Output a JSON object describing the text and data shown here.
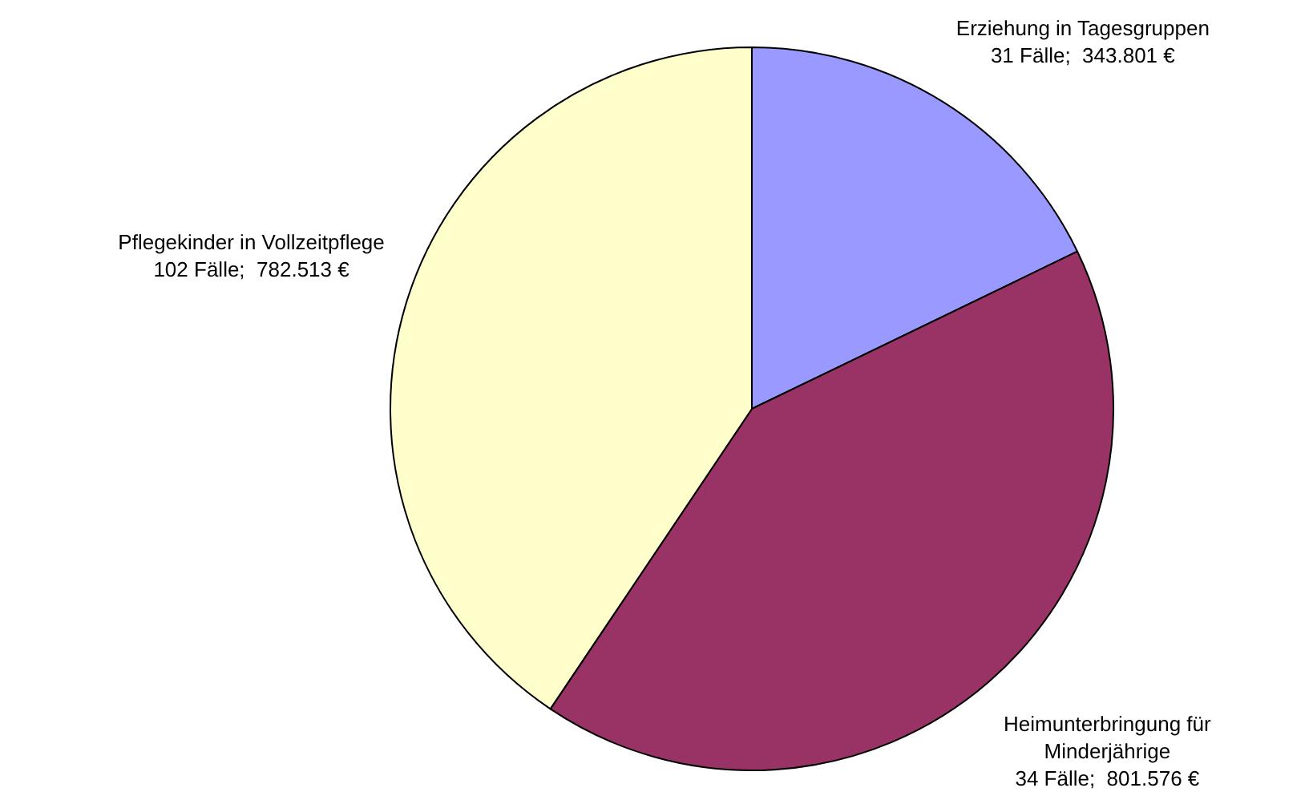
{
  "chart_data": {
    "type": "pie",
    "categories": [
      "Erziehung in Tagesgruppen",
      "Heimunterbringung für Minderjährige",
      "Pflegekinder in Vollzeitpflege"
    ],
    "values": [
      343801,
      801576,
      782513
    ],
    "value_labels": [
      "31 Fälle;  343.801 €",
      "34 Fälle;  801.576 €",
      "102 Fälle;  782.513 €"
    ],
    "colors": [
      "#9999ff",
      "#993366",
      "#ffffcc"
    ],
    "legend": false
  }
}
